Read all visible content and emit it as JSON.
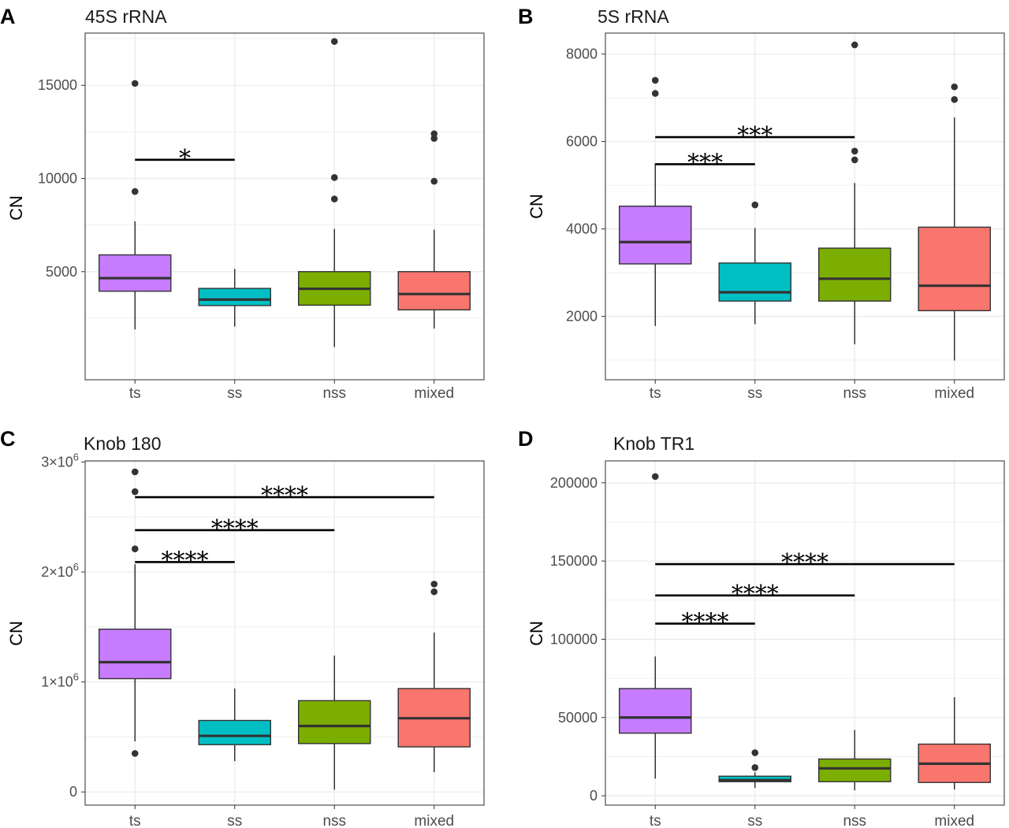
{
  "figure": {
    "panels": [
      {
        "letter": "A",
        "title": "45S rRNA",
        "ylabel": "CN"
      },
      {
        "letter": "B",
        "title": "5S rRNA",
        "ylabel": "CN"
      },
      {
        "letter": "C",
        "title": "Knob 180",
        "ylabel": "CN"
      },
      {
        "letter": "D",
        "title": "Knob TR1",
        "ylabel": "CN"
      }
    ]
  },
  "colors": {
    "ts": "#c77cff",
    "ss": "#00bfc4",
    "nss": "#7cae00",
    "mixed": "#f8766d",
    "panel_bg": "#ffffff",
    "grid": "#ebebeb",
    "border": "#4d4d4d",
    "median": "#333333",
    "whisker": "#333333"
  },
  "chart_data": [
    {
      "type": "box",
      "title": "45S rRNA",
      "xlabel": "",
      "ylabel": "CN",
      "categories": [
        "ts",
        "ss",
        "nss",
        "mixed"
      ],
      "ylim": [
        -800,
        17800
      ],
      "yticks": [
        5000,
        10000,
        15000
      ],
      "ytick_labels": [
        "5000",
        "10000",
        "15000"
      ],
      "grid": true,
      "boxes": [
        {
          "category": "ts",
          "low": 1900,
          "q1": 3950,
          "median": 4650,
          "q3": 5900,
          "high": 7700,
          "outliers": [
            9300,
            15100
          ]
        },
        {
          "category": "ss",
          "low": 2050,
          "q1": 3180,
          "median": 3500,
          "q3": 4100,
          "high": 5150,
          "outliers": []
        },
        {
          "category": "nss",
          "low": 950,
          "q1": 3200,
          "median": 4080,
          "q3": 5000,
          "high": 7300,
          "outliers": [
            8900,
            10050,
            17350
          ]
        },
        {
          "category": "mixed",
          "low": 1950,
          "q1": 2950,
          "median": 3800,
          "q3": 5000,
          "high": 7250,
          "outliers": [
            9850,
            12150,
            12400
          ]
        }
      ],
      "significance": [
        {
          "from": "ts",
          "to": "ss",
          "y": 11000,
          "label": "*"
        }
      ]
    },
    {
      "type": "box",
      "title": "5S rRNA",
      "xlabel": "",
      "ylabel": "CN",
      "categories": [
        "ts",
        "ss",
        "nss",
        "mixed"
      ],
      "ylim": [
        550,
        8480
      ],
      "yticks": [
        2000,
        4000,
        6000,
        8000
      ],
      "ytick_labels": [
        "2000",
        "4000",
        "6000",
        "8000"
      ],
      "grid": true,
      "boxes": [
        {
          "category": "ts",
          "low": 1780,
          "q1": 3200,
          "median": 3700,
          "q3": 4520,
          "high": 5500,
          "outliers": [
            7100,
            7400
          ]
        },
        {
          "category": "ss",
          "low": 1820,
          "q1": 2350,
          "median": 2550,
          "q3": 3220,
          "high": 4020,
          "outliers": [
            4550
          ]
        },
        {
          "category": "nss",
          "low": 1360,
          "q1": 2350,
          "median": 2860,
          "q3": 3560,
          "high": 5050,
          "outliers": [
            5580,
            5780,
            8210
          ]
        },
        {
          "category": "mixed",
          "low": 990,
          "q1": 2130,
          "median": 2700,
          "q3": 4040,
          "high": 6550,
          "outliers": [
            6960,
            7250
          ]
        }
      ],
      "significance": [
        {
          "from": "ts",
          "to": "ss",
          "y": 5480,
          "label": "***"
        },
        {
          "from": "ts",
          "to": "nss",
          "y": 6100,
          "label": "***"
        }
      ]
    },
    {
      "type": "box",
      "title": "Knob 180",
      "xlabel": "",
      "ylabel": "CN",
      "categories": [
        "ts",
        "ss",
        "nss",
        "mixed"
      ],
      "ylim": [
        -120000,
        3010000
      ],
      "yticks": [
        0,
        1000000,
        2000000,
        3000000
      ],
      "ytick_labels": [
        "0",
        "1×10",
        "2×10",
        "3×10"
      ],
      "ytick_exponents": [
        "",
        "6",
        "6",
        "6"
      ],
      "grid": true,
      "boxes": [
        {
          "category": "ts",
          "low": 460000,
          "q1": 1030000,
          "median": 1180000,
          "q3": 1480000,
          "high": 2070000,
          "outliers": [
            350000,
            2210000,
            2730000,
            2910000
          ]
        },
        {
          "category": "ss",
          "low": 280000,
          "q1": 430000,
          "median": 510000,
          "q3": 650000,
          "high": 940000,
          "outliers": []
        },
        {
          "category": "nss",
          "low": 20000,
          "q1": 440000,
          "median": 600000,
          "q3": 830000,
          "high": 1240000,
          "outliers": []
        },
        {
          "category": "mixed",
          "low": 180000,
          "q1": 410000,
          "median": 670000,
          "q3": 940000,
          "high": 1450000,
          "outliers": [
            1820000,
            1890000
          ]
        }
      ],
      "significance": [
        {
          "from": "ts",
          "to": "ss",
          "y": 2090000,
          "label": "****"
        },
        {
          "from": "ts",
          "to": "nss",
          "y": 2380000,
          "label": "****"
        },
        {
          "from": "ts",
          "to": "mixed",
          "y": 2680000,
          "label": "****"
        }
      ]
    },
    {
      "type": "box",
      "title": "Knob TR1",
      "xlabel": "",
      "ylabel": "CN",
      "categories": [
        "ts",
        "ss",
        "nss",
        "mixed"
      ],
      "ylim": [
        -6000,
        214000
      ],
      "yticks": [
        0,
        50000,
        100000,
        150000,
        200000
      ],
      "ytick_labels": [
        "0",
        "50000",
        "100000",
        "150000",
        "200000"
      ],
      "grid": true,
      "boxes": [
        {
          "category": "ts",
          "low": 11000,
          "q1": 40000,
          "median": 50000,
          "q3": 68500,
          "high": 89000,
          "outliers": [
            204000
          ]
        },
        {
          "category": "ss",
          "low": 5000,
          "q1": 9000,
          "median": 10000,
          "q3": 12500,
          "high": 15000,
          "outliers": [
            18000,
            27500
          ]
        },
        {
          "category": "nss",
          "low": 3500,
          "q1": 9000,
          "median": 17500,
          "q3": 23500,
          "high": 42000,
          "outliers": []
        },
        {
          "category": "mixed",
          "low": 4000,
          "q1": 8500,
          "median": 20500,
          "q3": 33000,
          "high": 63000,
          "outliers": []
        }
      ],
      "significance": [
        {
          "from": "ts",
          "to": "ss",
          "y": 110000,
          "label": "****"
        },
        {
          "from": "ts",
          "to": "nss",
          "y": 128000,
          "label": "****"
        },
        {
          "from": "ts",
          "to": "mixed",
          "y": 148000,
          "label": "****"
        }
      ]
    }
  ]
}
